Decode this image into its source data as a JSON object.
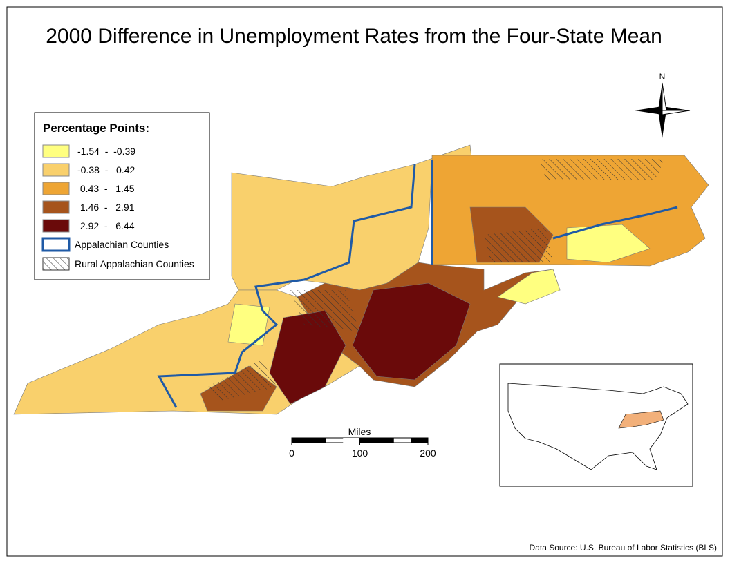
{
  "title": "2000 Difference in Unemployment Rates from the Four-State Mean",
  "legend": {
    "title": "Percentage Points:",
    "classes": [
      {
        "label": "-1.54  -  -0.39",
        "color": "#ffff80"
      },
      {
        "label": "-0.38  -   0.42",
        "color": "#f9d06c"
      },
      {
        "label": " 0.43  -   1.45",
        "color": "#eea534"
      },
      {
        "label": " 1.46  -   2.91",
        "color": "#a6541c"
      },
      {
        "label": " 2.92  -   6.44",
        "color": "#6a0a0a"
      }
    ],
    "appalachian": "Appalachian Counties",
    "rural": "Rural Appalachian Counties"
  },
  "scale_bar": {
    "label": "Miles",
    "ticks": [
      0,
      100,
      200
    ]
  },
  "north": "N",
  "source": "Data Source: U.S. Bureau of Labor Statistics (BLS)"
}
